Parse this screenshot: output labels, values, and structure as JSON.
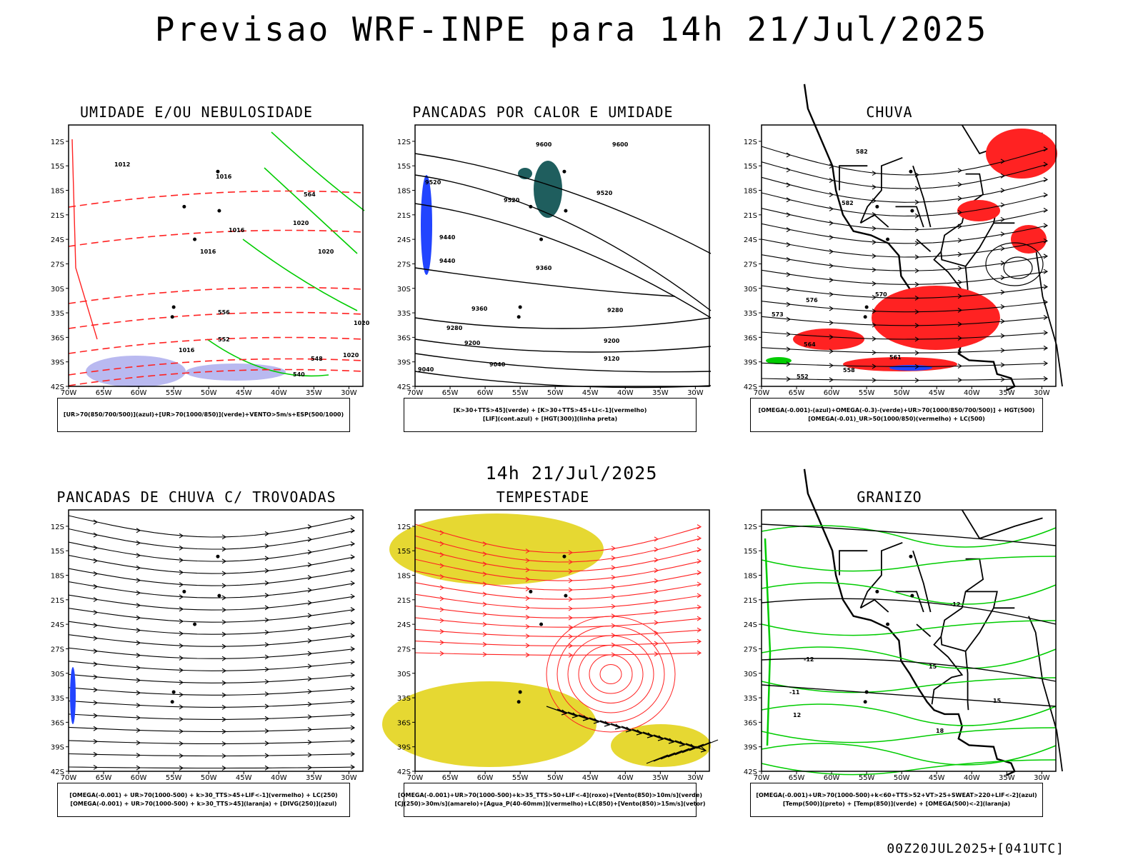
{
  "title": "Previsao WRF-INPE  para 14h 21/Jul/2025",
  "subtime": "14h 21/Jul/2025",
  "footer": "00Z20JUL2025+[041UTC]",
  "lat_ticks": [
    "12S",
    "15S",
    "18S",
    "21S",
    "24S",
    "27S",
    "30S",
    "33S",
    "36S",
    "39S",
    "42S"
  ],
  "lon_ticks": [
    "70W",
    "65W",
    "60W",
    "55W",
    "50W",
    "45W",
    "40W",
    "35W",
    "30W"
  ],
  "panels": [
    {
      "title": "UMIDADE E/OU NEBULOSIDADE",
      "legend": [
        "[UR>70(850/700/500)](azul)+[UR>70(1000/850)](verde)+VENTO>5m/s+ESP(500/1000)"
      ],
      "labels": [
        "1012",
        "1016",
        "1020",
        "1016",
        "1016",
        "1020",
        "1020",
        "564",
        "556",
        "552",
        "548",
        "540",
        "1016",
        "1020"
      ]
    },
    {
      "title": "PANCADAS POR CALOR E UMIDADE",
      "legend": [
        "[K>30+TTS>45](verde) + [K>30+TTS>45+LI<-1](vermelho)",
        "[LIF](cont.azul) + [HGT(300)](linha preta)"
      ],
      "labels": [
        "9600",
        "9600",
        "9520",
        "9520",
        "9520",
        "9440",
        "9440",
        "9360",
        "9360",
        "9280",
        "9280",
        "9200",
        "9200",
        "9120",
        "9040",
        "9040"
      ]
    },
    {
      "title": "CHUVA",
      "legend": [
        "[OMEGA(-0.001)-(azul)+OMEGA(-0.3)-(verde)+UR>70(1000/850/700/500)] + HGT(500)",
        "[OMEGA(-0.01)_UR>50(1000/850)(vermelho) + LC(500)"
      ],
      "labels": [
        "582",
        "582",
        "576",
        "573",
        "570",
        "564",
        "561",
        "558",
        "552"
      ]
    },
    {
      "title": "PANCADAS DE CHUVA C/ TROVOADAS",
      "legend": [
        "[OMEGA(-0.001) + UR>70(1000-500) + k>30_TTS>45+LIF<-1](vermelho) + LC(250)",
        "[OMEGA(-0.001) + UR>70(1000-500) + k>30_TTS>45](laranja) + [DIVG(250)](azul)"
      ],
      "labels": []
    },
    {
      "title": "TEMPESTADE",
      "legend": [
        "[OMEGA(-0.001)+UR>70(1000-500)+k>35_TTS>50+LIF<-4](roxo)+[Vento(850)>10m/s](verde)",
        "[CJ(250)>30m/s](amarelo)+[Agua_P(40-60mm)](vermelho)+LC(850)+[Vento(850)>15m/s](vetor)"
      ],
      "labels": []
    },
    {
      "title": "GRANIZO",
      "legend": [
        "[OMEGA(-0.001)+UR>70(1000-500)+k<60+TTS>52+VT>25+SWEAT>220+LIF<-2](azul)",
        "[Temp(500)](preto) + [Temp(850)](verde) + [OMEGA(500)<-2](laranja)"
      ],
      "labels": [
        "-12",
        "-12",
        "-11",
        "12",
        "15",
        "18",
        "15"
      ]
    }
  ],
  "colors": {
    "blue": "#2244ff",
    "green": "#00cc00",
    "red": "#ff2222",
    "yellow": "#e6d832",
    "teal": "#1f5e5e",
    "lavender": "#b9b9f0"
  },
  "icons": [
    "streamline-arrows",
    "wind-vector-arrows"
  ]
}
